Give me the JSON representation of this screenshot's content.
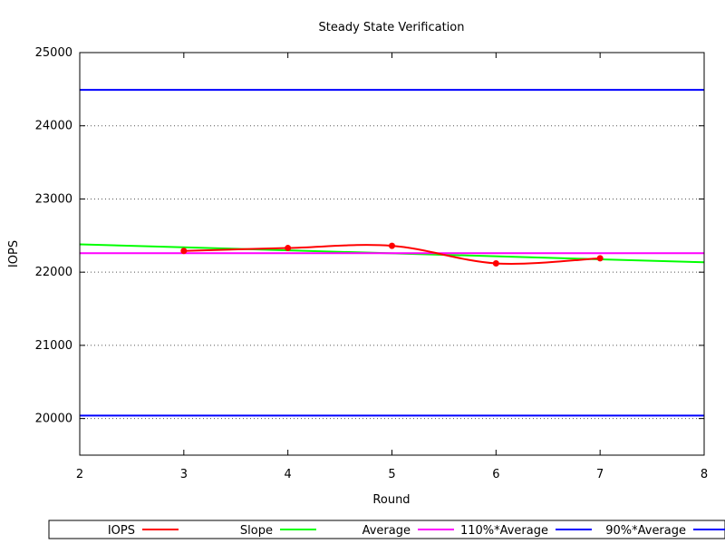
{
  "chart_data": {
    "type": "line",
    "title": "Steady State Verification",
    "xlabel": "Round",
    "ylabel": "IOPS",
    "xlim": [
      2,
      8
    ],
    "ylim": [
      19500,
      25000
    ],
    "xticks": [
      "2",
      "3",
      "4",
      "5",
      "6",
      "7",
      "8"
    ],
    "yticks": [
      "20000",
      "21000",
      "22000",
      "23000",
      "24000",
      "25000"
    ],
    "grid": "horizontal dotted",
    "legend_position": "bottom",
    "series": [
      {
        "name": "IOPS",
        "color": "#ff0000",
        "style": "smooth line with points",
        "x": [
          3,
          4,
          5,
          6,
          7
        ],
        "y": [
          22290,
          22330,
          22360,
          22120,
          22190
        ]
      },
      {
        "name": "Slope",
        "color": "#00ff00",
        "style": "line",
        "x": [
          2,
          8
        ],
        "y": [
          22380,
          22135
        ]
      },
      {
        "name": "Average",
        "color": "#ff00ff",
        "style": "line",
        "x": [
          2,
          8
        ],
        "y": [
          22260,
          22260
        ]
      },
      {
        "name": "110%*Average",
        "color": "#0000ff",
        "style": "line",
        "x": [
          2,
          8
        ],
        "y": [
          24490,
          24490
        ]
      },
      {
        "name": "90%*Average",
        "color": "#0000ff",
        "style": "line",
        "x": [
          2,
          8
        ],
        "y": [
          20040,
          20040
        ]
      }
    ]
  }
}
